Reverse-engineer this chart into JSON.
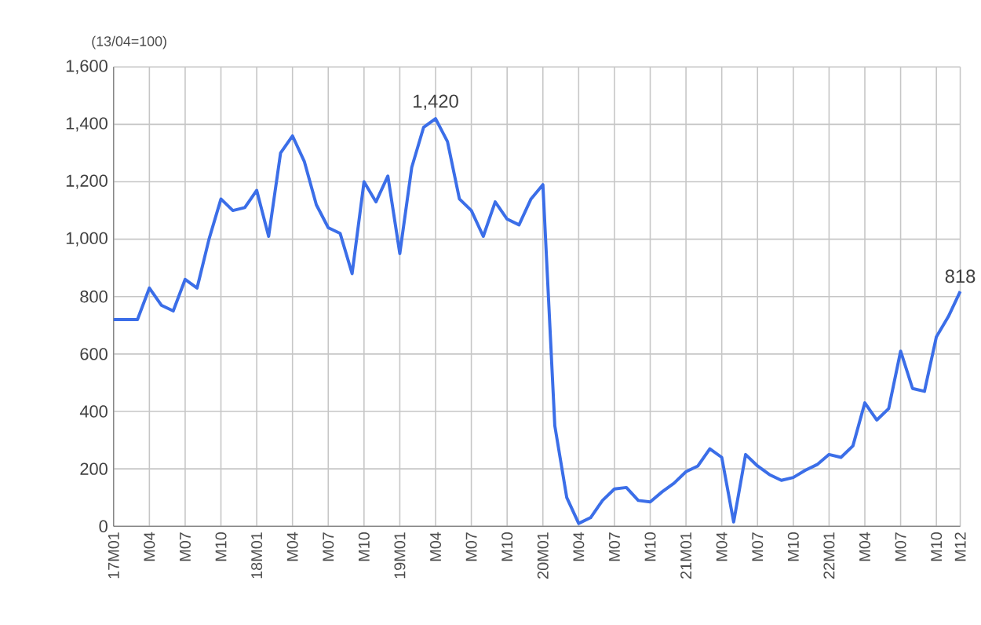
{
  "chart_data": {
    "type": "line",
    "ylabel": "(13/04=100)",
    "categories": [
      "17M01",
      null,
      null,
      "M04",
      null,
      null,
      "M07",
      null,
      null,
      "M10",
      null,
      null,
      "18M01",
      null,
      null,
      "M04",
      null,
      null,
      "M07",
      null,
      null,
      "M10",
      null,
      null,
      "19M01",
      null,
      null,
      "M04",
      null,
      null,
      "M07",
      null,
      null,
      "M10",
      null,
      null,
      "20M01",
      null,
      null,
      "M04",
      null,
      null,
      "M07",
      null,
      null,
      "M10",
      null,
      null,
      "21M01",
      null,
      null,
      "M04",
      null,
      null,
      "M07",
      null,
      null,
      "M10",
      null,
      null,
      "22M01",
      null,
      null,
      "M04",
      null,
      null,
      "M07",
      null,
      null,
      "M10",
      null,
      "M12"
    ],
    "values": [
      720,
      720,
      720,
      830,
      770,
      750,
      860,
      830,
      1000,
      1140,
      1100,
      1110,
      1170,
      1010,
      1300,
      1360,
      1270,
      1120,
      1040,
      1020,
      880,
      1200,
      1130,
      1220,
      950,
      1250,
      1390,
      1420,
      1340,
      1140,
      1100,
      1010,
      1130,
      1070,
      1050,
      1140,
      1190,
      350,
      100,
      10,
      30,
      90,
      130,
      135,
      90,
      85,
      120,
      150,
      190,
      210,
      270,
      240,
      15,
      250,
      210,
      180,
      160,
      170,
      195,
      215,
      250,
      240,
      280,
      430,
      370,
      410,
      610,
      480,
      470,
      660,
      730,
      818
    ],
    "value_labels": [
      null,
      null,
      null,
      null,
      null,
      null,
      null,
      null,
      null,
      null,
      null,
      null,
      null,
      null,
      null,
      null,
      null,
      null,
      null,
      null,
      null,
      null,
      null,
      null,
      null,
      null,
      null,
      "1,420",
      null,
      null,
      null,
      null,
      null,
      null,
      null,
      null,
      null,
      null,
      null,
      null,
      null,
      null,
      null,
      null,
      null,
      null,
      null,
      null,
      null,
      null,
      null,
      null,
      null,
      null,
      null,
      null,
      null,
      null,
      null,
      null,
      null,
      null,
      null,
      null,
      null,
      null,
      null,
      null,
      null,
      null,
      null,
      "818"
    ],
    "color": "#3b6ee8",
    "ylim": [
      0,
      1600
    ],
    "yticks": [
      0,
      200,
      400,
      600,
      800,
      {
        "value": 1000,
        "label": "1,000"
      },
      {
        "value": 1200,
        "label": "1,200"
      },
      {
        "value": 1400,
        "label": "1,400"
      },
      {
        "value": 1600,
        "label": "1,600"
      }
    ],
    "grid": true,
    "marker": "none",
    "line_style": "solid"
  }
}
